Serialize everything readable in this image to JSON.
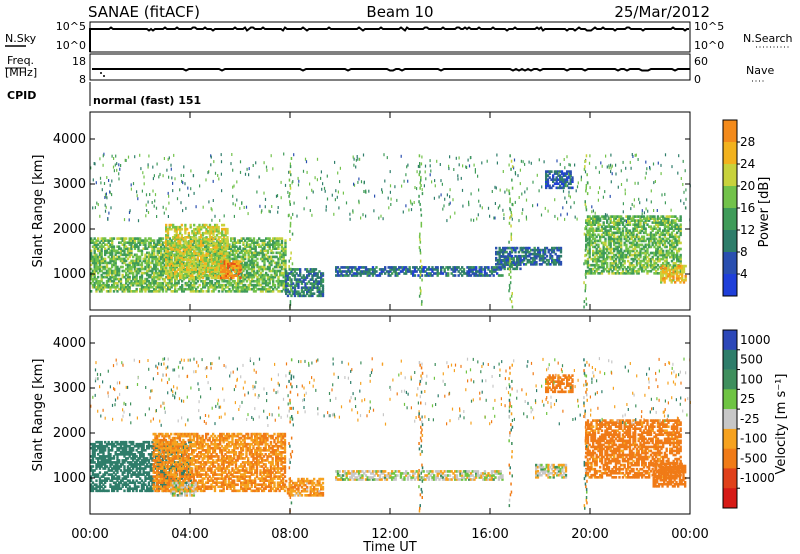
{
  "header": {
    "station": "SANAE (fitACF)",
    "beam": "Beam 10",
    "date": "25/Mar/2012"
  },
  "strips": {
    "nsky_label": "N.Sky",
    "nsky_ticks": [
      "10^5",
      "10^0"
    ],
    "nsearch_label": "N.Search",
    "nsearch_ticks": [
      "10^5",
      "10^0"
    ],
    "freq_label": "Freq.",
    "freq_unit": "[MHz]",
    "freq_ticks": [
      "18",
      "8"
    ],
    "nave_label": "Nave",
    "nave_ticks": [
      "60",
      "0"
    ],
    "cpid_label": "CPID",
    "cpid_value": "normal (fast) 151"
  },
  "chart_data": [
    {
      "type": "heatmap",
      "name": "power",
      "ylabel": "Slant Range [km]",
      "ylim": [
        200,
        4600
      ],
      "y_ticks": [
        "1000",
        "2000",
        "3000",
        "4000"
      ],
      "xlim": [
        0,
        24
      ],
      "x_ticks": [
        "00:00",
        "04:00",
        "08:00",
        "12:00",
        "16:00",
        "20:00",
        "00:00"
      ],
      "xlabel": "Time UT",
      "colorbar": {
        "label": "Power [dB]",
        "range": [
          0,
          32
        ],
        "ticks": [
          "4",
          "8",
          "12",
          "16",
          "20",
          "24",
          "28"
        ],
        "colors": [
          "#1f3fd9",
          "#2a4fb0",
          "#2e7d6a",
          "#3f9b59",
          "#72c24a",
          "#c8d23c",
          "#f2b21e",
          "#f38a1b",
          "#e85015",
          "#d81d12",
          "#c9130e"
        ]
      },
      "regions": [
        {
          "t0": 0.0,
          "t1": 7.8,
          "r0": 600,
          "r1": 1800,
          "level": 12
        },
        {
          "t0": 3.0,
          "t1": 5.5,
          "r0": 900,
          "r1": 2100,
          "level": 16
        },
        {
          "t0": 5.2,
          "t1": 6.0,
          "r0": 900,
          "r1": 1300,
          "level": 22
        },
        {
          "t0": 7.8,
          "t1": 9.3,
          "r0": 500,
          "r1": 1100,
          "level": 6
        },
        {
          "t0": 9.8,
          "t1": 16.5,
          "r0": 950,
          "r1": 1150,
          "level": 5
        },
        {
          "t0": 16.4,
          "t1": 17.2,
          "r0": 1100,
          "r1": 1400,
          "level": 6
        },
        {
          "t0": 16.2,
          "t1": 18.8,
          "r0": 1200,
          "r1": 1600,
          "level": 5
        },
        {
          "t0": 19.8,
          "t1": 23.6,
          "r0": 1000,
          "r1": 2300,
          "level": 12
        },
        {
          "t0": 22.8,
          "t1": 23.8,
          "r0": 800,
          "r1": 1200,
          "level": 18
        },
        {
          "t0": 18.2,
          "t1": 19.3,
          "r0": 2900,
          "r1": 3300,
          "level": 4
        }
      ]
    },
    {
      "type": "heatmap",
      "name": "velocity",
      "ylabel": "Slant Range [km]",
      "ylim": [
        200,
        4600
      ],
      "y_ticks": [
        "1000",
        "2000",
        "3000",
        "4000"
      ],
      "xlim": [
        0,
        24
      ],
      "x_ticks": [
        "00:00",
        "04:00",
        "08:00",
        "12:00",
        "16:00",
        "20:00",
        "00:00"
      ],
      "xlabel": "Time UT",
      "colorbar": {
        "label": "Velocity [m s⁻¹]",
        "ticks": [
          "1000",
          "500",
          "100",
          "25",
          "-25",
          "-100",
          "-500",
          "-1000"
        ],
        "colors": [
          "#2c47b8",
          "#2e7d6a",
          "#3f8f5d",
          "#6fc443",
          "#c7c7c7",
          "#f6a21f",
          "#f07b17",
          "#e0401a",
          "#d61a16"
        ]
      },
      "regions": [
        {
          "t0": 0.0,
          "t1": 4.0,
          "r0": 700,
          "r1": 1800,
          "velocity": 300
        },
        {
          "t0": 2.5,
          "t1": 7.8,
          "r0": 700,
          "r1": 2000,
          "velocity": -100
        },
        {
          "t0": 3.2,
          "t1": 4.2,
          "r0": 600,
          "r1": 900,
          "velocity": 0
        },
        {
          "t0": 7.8,
          "t1": 9.3,
          "r0": 600,
          "r1": 1000,
          "velocity": -80
        },
        {
          "t0": 9.8,
          "t1": 16.5,
          "r0": 950,
          "r1": 1150,
          "velocity": 0
        },
        {
          "t0": 17.8,
          "t1": 19.0,
          "r0": 1000,
          "r1": 1300,
          "velocity": 0
        },
        {
          "t0": 19.8,
          "t1": 23.6,
          "r0": 1000,
          "r1": 2300,
          "velocity": -150
        },
        {
          "t0": 22.5,
          "t1": 23.8,
          "r0": 800,
          "r1": 1300,
          "velocity": -300
        },
        {
          "t0": 18.2,
          "t1": 19.3,
          "r0": 2900,
          "r1": 3300,
          "velocity": -150
        }
      ]
    }
  ],
  "colors": {
    "axes": "#000000",
    "background": "#ffffff"
  }
}
